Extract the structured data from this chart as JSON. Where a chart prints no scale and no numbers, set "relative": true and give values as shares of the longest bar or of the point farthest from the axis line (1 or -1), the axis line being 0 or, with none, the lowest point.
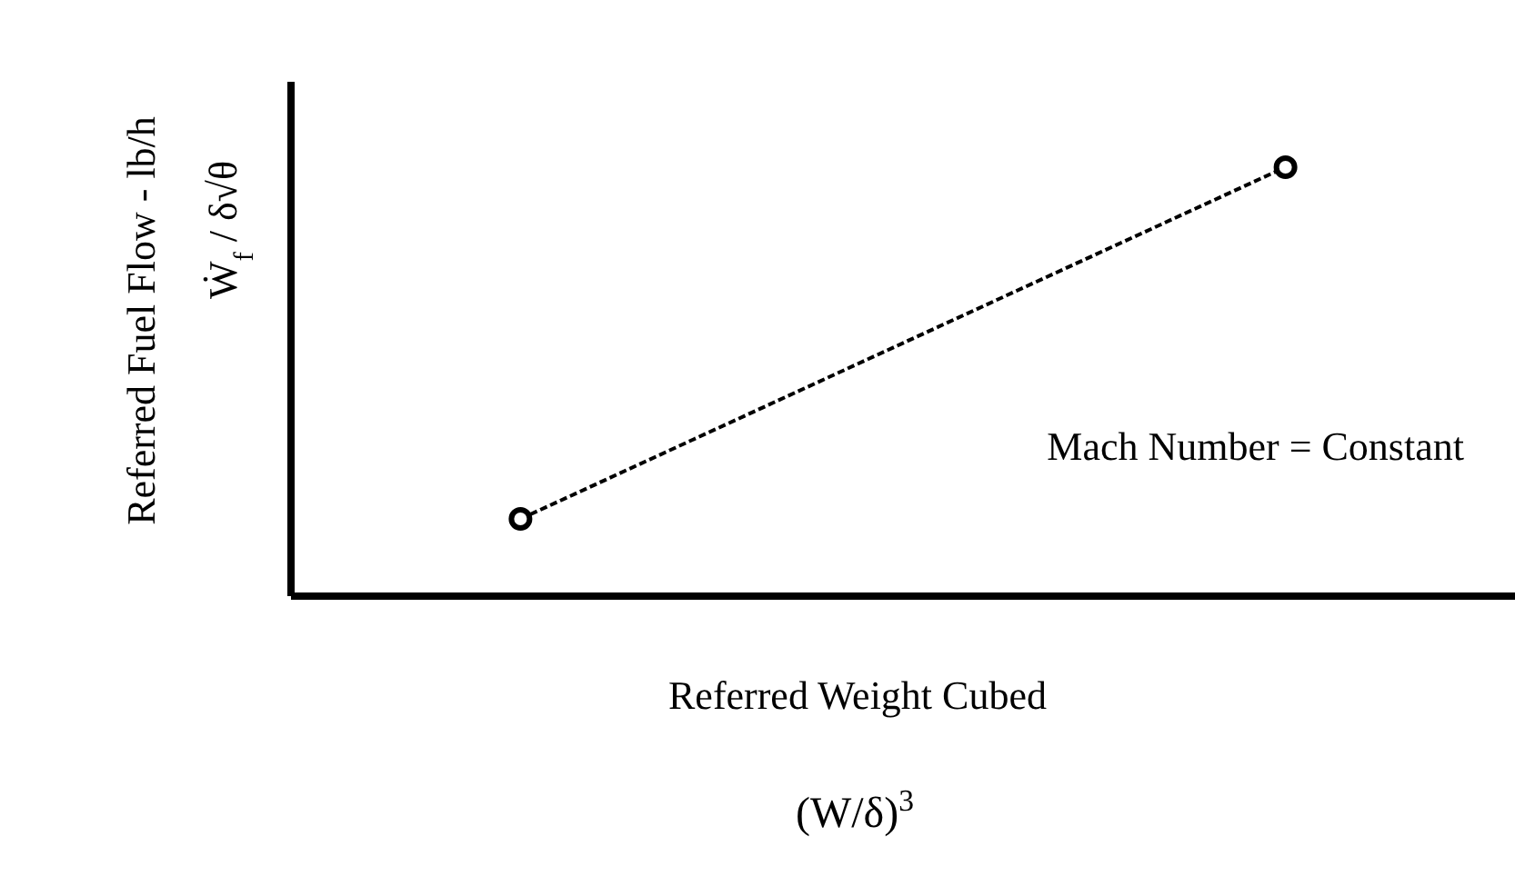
{
  "chart_data": {
    "type": "line",
    "relative": true,
    "categories": [
      null,
      null
    ],
    "series": [
      {
        "color": "#000000",
        "values": [
          0.18,
          1
        ]
      }
    ],
    "xlabel": "Referred Weight Cubed",
    "ylabel": "Referred Fuel Flow - lb/h",
    "annotations": [
      {
        "text": "Mach Number = Constant"
      },
      {
        "text": "(W/δ)$^{3}$"
      },
      {
        "text": "Ẇ$_{f}$ / δ√θ"
      }
    ],
    "marker": "circle",
    "line_style": "dashed"
  }
}
